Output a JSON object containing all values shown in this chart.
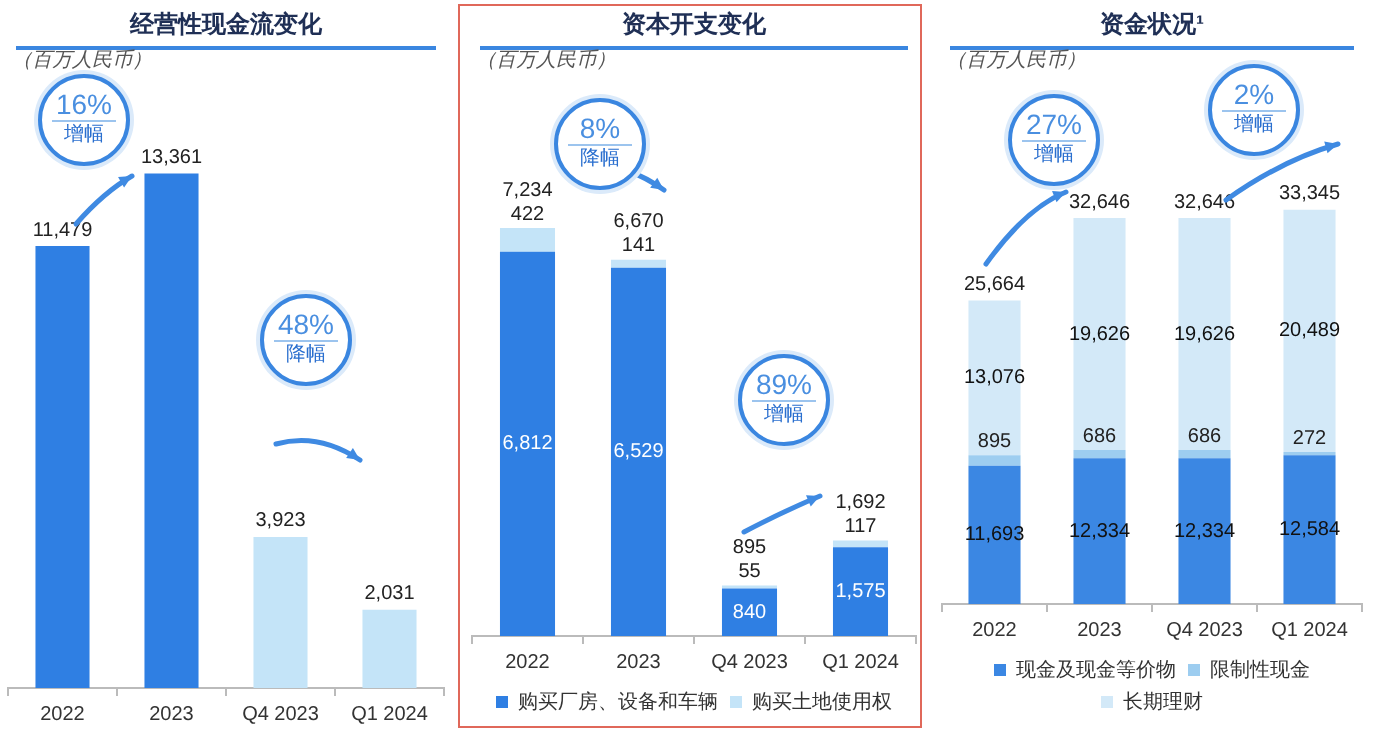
{
  "chart_data": [
    {
      "type": "bar",
      "title": "经营性现金流变化",
      "subtitle": "（百万人民币）",
      "categories": [
        "2022",
        "2023",
        "Q4 2023",
        "Q1 2024"
      ],
      "values": [
        11479,
        13361,
        3923,
        2031
      ],
      "value_labels": [
        "11,479",
        "13,361",
        "3,923",
        "2,031"
      ],
      "colors": [
        "#2f7fe3",
        "#2f7fe3",
        "#c4e4f8",
        "#c4e4f8"
      ],
      "tick_labels": "x",
      "grid": false,
      "legend": false,
      "annotations": [
        "16%",
        "增幅",
        "48%",
        "降幅"
      ]
    },
    {
      "type": "bar",
      "title": "资本开支变化",
      "subtitle": "（百万人民币）",
      "categories": [
        "2022",
        "2023",
        "Q4 2023",
        "Q1 2024"
      ],
      "stacked": true,
      "series": [
        {
          "name": "购买厂房、设备和车辆",
          "color": "#2f7fe3",
          "values": [
            6812,
            6529,
            840,
            1575
          ],
          "value_labels": [
            "6,812",
            "6,529",
            "840",
            "1,575"
          ]
        },
        {
          "name": "购买土地使用权",
          "color": "#c4e4f8",
          "values": [
            422,
            141,
            55,
            117
          ],
          "value_labels": [
            "422",
            "141",
            "55",
            "117"
          ]
        }
      ],
      "totals": [
        "7,234",
        "6,670",
        "895",
        "1,692"
      ],
      "tick_labels": "x",
      "grid": false,
      "legend": "bottom",
      "annotations": [
        "8%",
        "降幅",
        "89%",
        "增幅"
      ]
    },
    {
      "type": "bar",
      "title": "资金状况¹",
      "subtitle": "（百万人民币）",
      "categories": [
        "2022",
        "2023",
        "Q4 2023",
        "Q1 2024"
      ],
      "stacked": true,
      "series": [
        {
          "name": "现金及现金等价物",
          "color": "#3b87e3",
          "values": [
            11693,
            12334,
            12334,
            12584
          ],
          "value_labels": [
            "11,693",
            "12,334",
            "12,334",
            "12,584"
          ]
        },
        {
          "name": "限制性现金",
          "color": "#9dcdf0",
          "values": [
            895,
            686,
            686,
            272
          ],
          "value_labels": [
            "895",
            "686",
            "686",
            "272"
          ]
        },
        {
          "name": "长期理财",
          "color": "#d3e9f8",
          "values": [
            13076,
            19626,
            19626,
            20489
          ],
          "value_labels": [
            "13,076",
            "19,626",
            "19,626",
            "20,489"
          ]
        }
      ],
      "totals": [
        "25,664",
        "32,646",
        "32,646",
        "33,345"
      ],
      "tick_labels": "x",
      "grid": false,
      "legend": "bottom",
      "annotations": [
        "27%",
        "增幅",
        "2%",
        "增幅"
      ]
    }
  ]
}
